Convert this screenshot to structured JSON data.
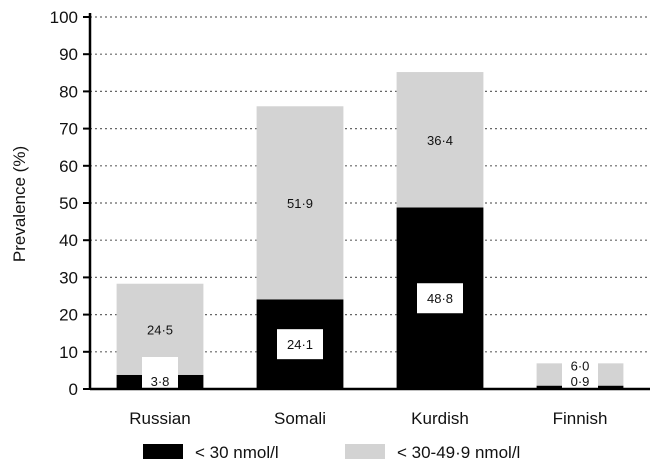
{
  "chart_data": {
    "type": "bar",
    "stacked": true,
    "categories": [
      "Russian",
      "Somali",
      "Kurdish",
      "Finnish"
    ],
    "series": [
      {
        "name": "< 30 nmol/l",
        "values": [
          3.8,
          24.1,
          48.8,
          0.9
        ],
        "labels": [
          "3·8",
          "24·1",
          "48·8",
          "0·9"
        ],
        "color": "#000000"
      },
      {
        "name": "< 30-49·9 nmol/l",
        "values": [
          24.5,
          51.9,
          36.4,
          6.0
        ],
        "labels": [
          "24·5",
          "51·9",
          "36·4",
          "6·0"
        ],
        "color": "#d3d3d3"
      }
    ],
    "ylabel": "Prevalence (%)",
    "xlabel": "",
    "ylim": [
      0,
      100
    ],
    "yticks": [
      0,
      10,
      20,
      30,
      40,
      50,
      60,
      70,
      80,
      90,
      100
    ],
    "grid": "horizontal dotted",
    "legend": "bottom"
  }
}
